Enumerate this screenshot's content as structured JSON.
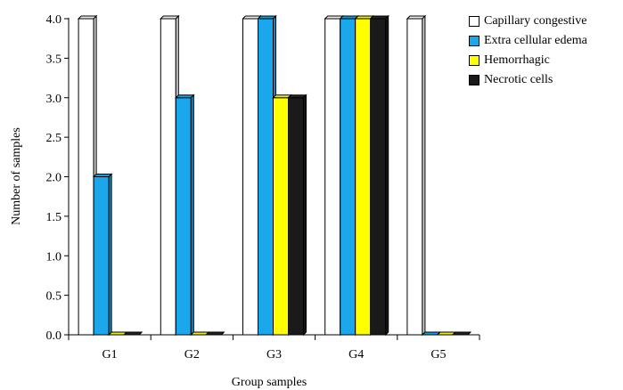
{
  "chart_data": {
    "type": "bar",
    "style": "3d-clustered",
    "categories": [
      "G1",
      "G2",
      "G3",
      "G4",
      "G5"
    ],
    "series": [
      {
        "name": "Capillary congestive",
        "color": "#ffffff",
        "values": [
          4,
          4,
          4,
          4,
          4
        ]
      },
      {
        "name": "Extra cellular edema",
        "color": "#1aa7ec",
        "values": [
          2,
          3,
          4,
          4,
          0
        ]
      },
      {
        "name": "Hemorrhagic",
        "color": "#ffff00",
        "values": [
          0,
          0,
          3,
          4,
          0
        ]
      },
      {
        "name": "Necrotic cells",
        "color": "#1a1a1a",
        "values": [
          0,
          0,
          3,
          4,
          0
        ]
      }
    ],
    "xlabel": "Group samples",
    "ylabel": "Number of samples",
    "ylim": [
      0,
      4
    ],
    "yticks": [
      "0.0",
      "0.5",
      "1.0",
      "1.5",
      "2.0",
      "2.5",
      "3.0",
      "3.5",
      "4.0"
    ],
    "grid": false,
    "legend_position": "top-right"
  }
}
